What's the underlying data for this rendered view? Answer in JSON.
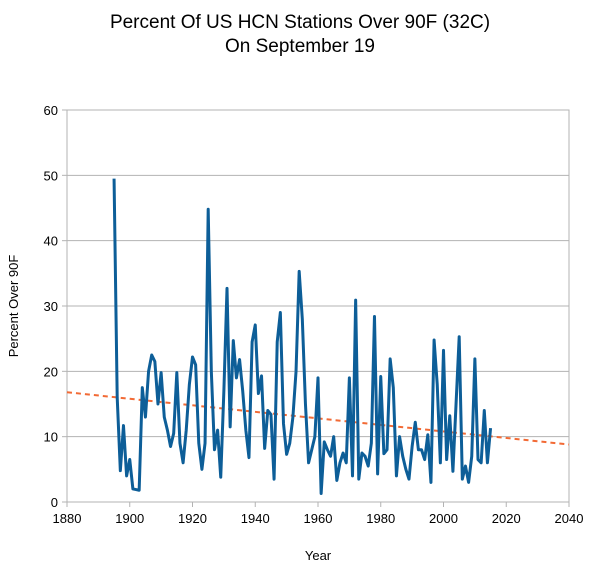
{
  "chart_data": {
    "type": "line",
    "title": [
      "Percent Of US HCN Stations Over 90F (32C)",
      "On September 19"
    ],
    "xlabel": "Year",
    "ylabel": "Percent Over 90F",
    "x": [
      1895,
      1896,
      1897,
      1898,
      1899,
      1900,
      1901,
      1902,
      1903,
      1904,
      1905,
      1906,
      1907,
      1908,
      1909,
      1910,
      1911,
      1912,
      1913,
      1914,
      1915,
      1916,
      1917,
      1918,
      1919,
      1920,
      1921,
      1922,
      1923,
      1924,
      1925,
      1926,
      1927,
      1928,
      1929,
      1930,
      1931,
      1932,
      1933,
      1934,
      1935,
      1936,
      1937,
      1938,
      1939,
      1940,
      1941,
      1942,
      1943,
      1944,
      1945,
      1946,
      1947,
      1948,
      1949,
      1950,
      1951,
      1952,
      1953,
      1954,
      1955,
      1956,
      1957,
      1958,
      1959,
      1960,
      1961,
      1962,
      1963,
      1964,
      1965,
      1966,
      1967,
      1968,
      1969,
      1970,
      1971,
      1972,
      1973,
      1974,
      1975,
      1976,
      1977,
      1978,
      1979,
      1980,
      1981,
      1982,
      1983,
      1984,
      1985,
      1986,
      1987,
      1988,
      1989,
      1990,
      1991,
      1992,
      1993,
      1994,
      1995,
      1996,
      1997,
      1998,
      1999,
      2000,
      2001,
      2002,
      2003,
      2004,
      2005,
      2006,
      2007,
      2008,
      2009,
      2010,
      2011,
      2012,
      2013,
      2014,
      2015
    ],
    "series": [
      {
        "color": "#0d5e98",
        "values": [
          49.5,
          16,
          4.8,
          11.7,
          4,
          6.5,
          2,
          1.9,
          1.8,
          17.5,
          13,
          20,
          22.5,
          21.5,
          15,
          19.8,
          13,
          11,
          8.5,
          10.5,
          19.8,
          9,
          6,
          11,
          18,
          22.2,
          21,
          9,
          5,
          9,
          44.8,
          20,
          8,
          11,
          3.8,
          17,
          32.7,
          11.5,
          24.7,
          19,
          21.8,
          17,
          11,
          6.8,
          24.5,
          27.1,
          16.6,
          19.3,
          8.2,
          14,
          13.4,
          3.5,
          24.5,
          29,
          12,
          7.3,
          9,
          13,
          20,
          35.3,
          28,
          15,
          6,
          8,
          10,
          19,
          1.3,
          9.2,
          8,
          7,
          10,
          3.3,
          6,
          7.5,
          6,
          19,
          4,
          30.9,
          3.5,
          7.5,
          7,
          5.5,
          9,
          28.4,
          4.3,
          19.2,
          7.4,
          8,
          21.9,
          17.5,
          4,
          10,
          7,
          5,
          3.5,
          8.5,
          12.2,
          8,
          8,
          6.5,
          10.3,
          3,
          24.8,
          18,
          6,
          23.2,
          6.5,
          13.2,
          4.7,
          15,
          25.3,
          3.5,
          5.5,
          3,
          7,
          21.9,
          6.5,
          6,
          14,
          6,
          11.3
        ]
      }
    ],
    "trendline": {
      "color": "#f26a35",
      "x": [
        1880,
        2040
      ],
      "values": [
        16.8,
        8.8
      ]
    },
    "xlim": [
      1880,
      2040
    ],
    "xticks": [
      1880,
      1900,
      1920,
      1940,
      1960,
      1980,
      2000,
      2020,
      2040
    ],
    "ylim": [
      0,
      60
    ],
    "yticks": [
      0,
      10,
      20,
      30,
      40,
      50,
      60
    ],
    "grid": true
  }
}
